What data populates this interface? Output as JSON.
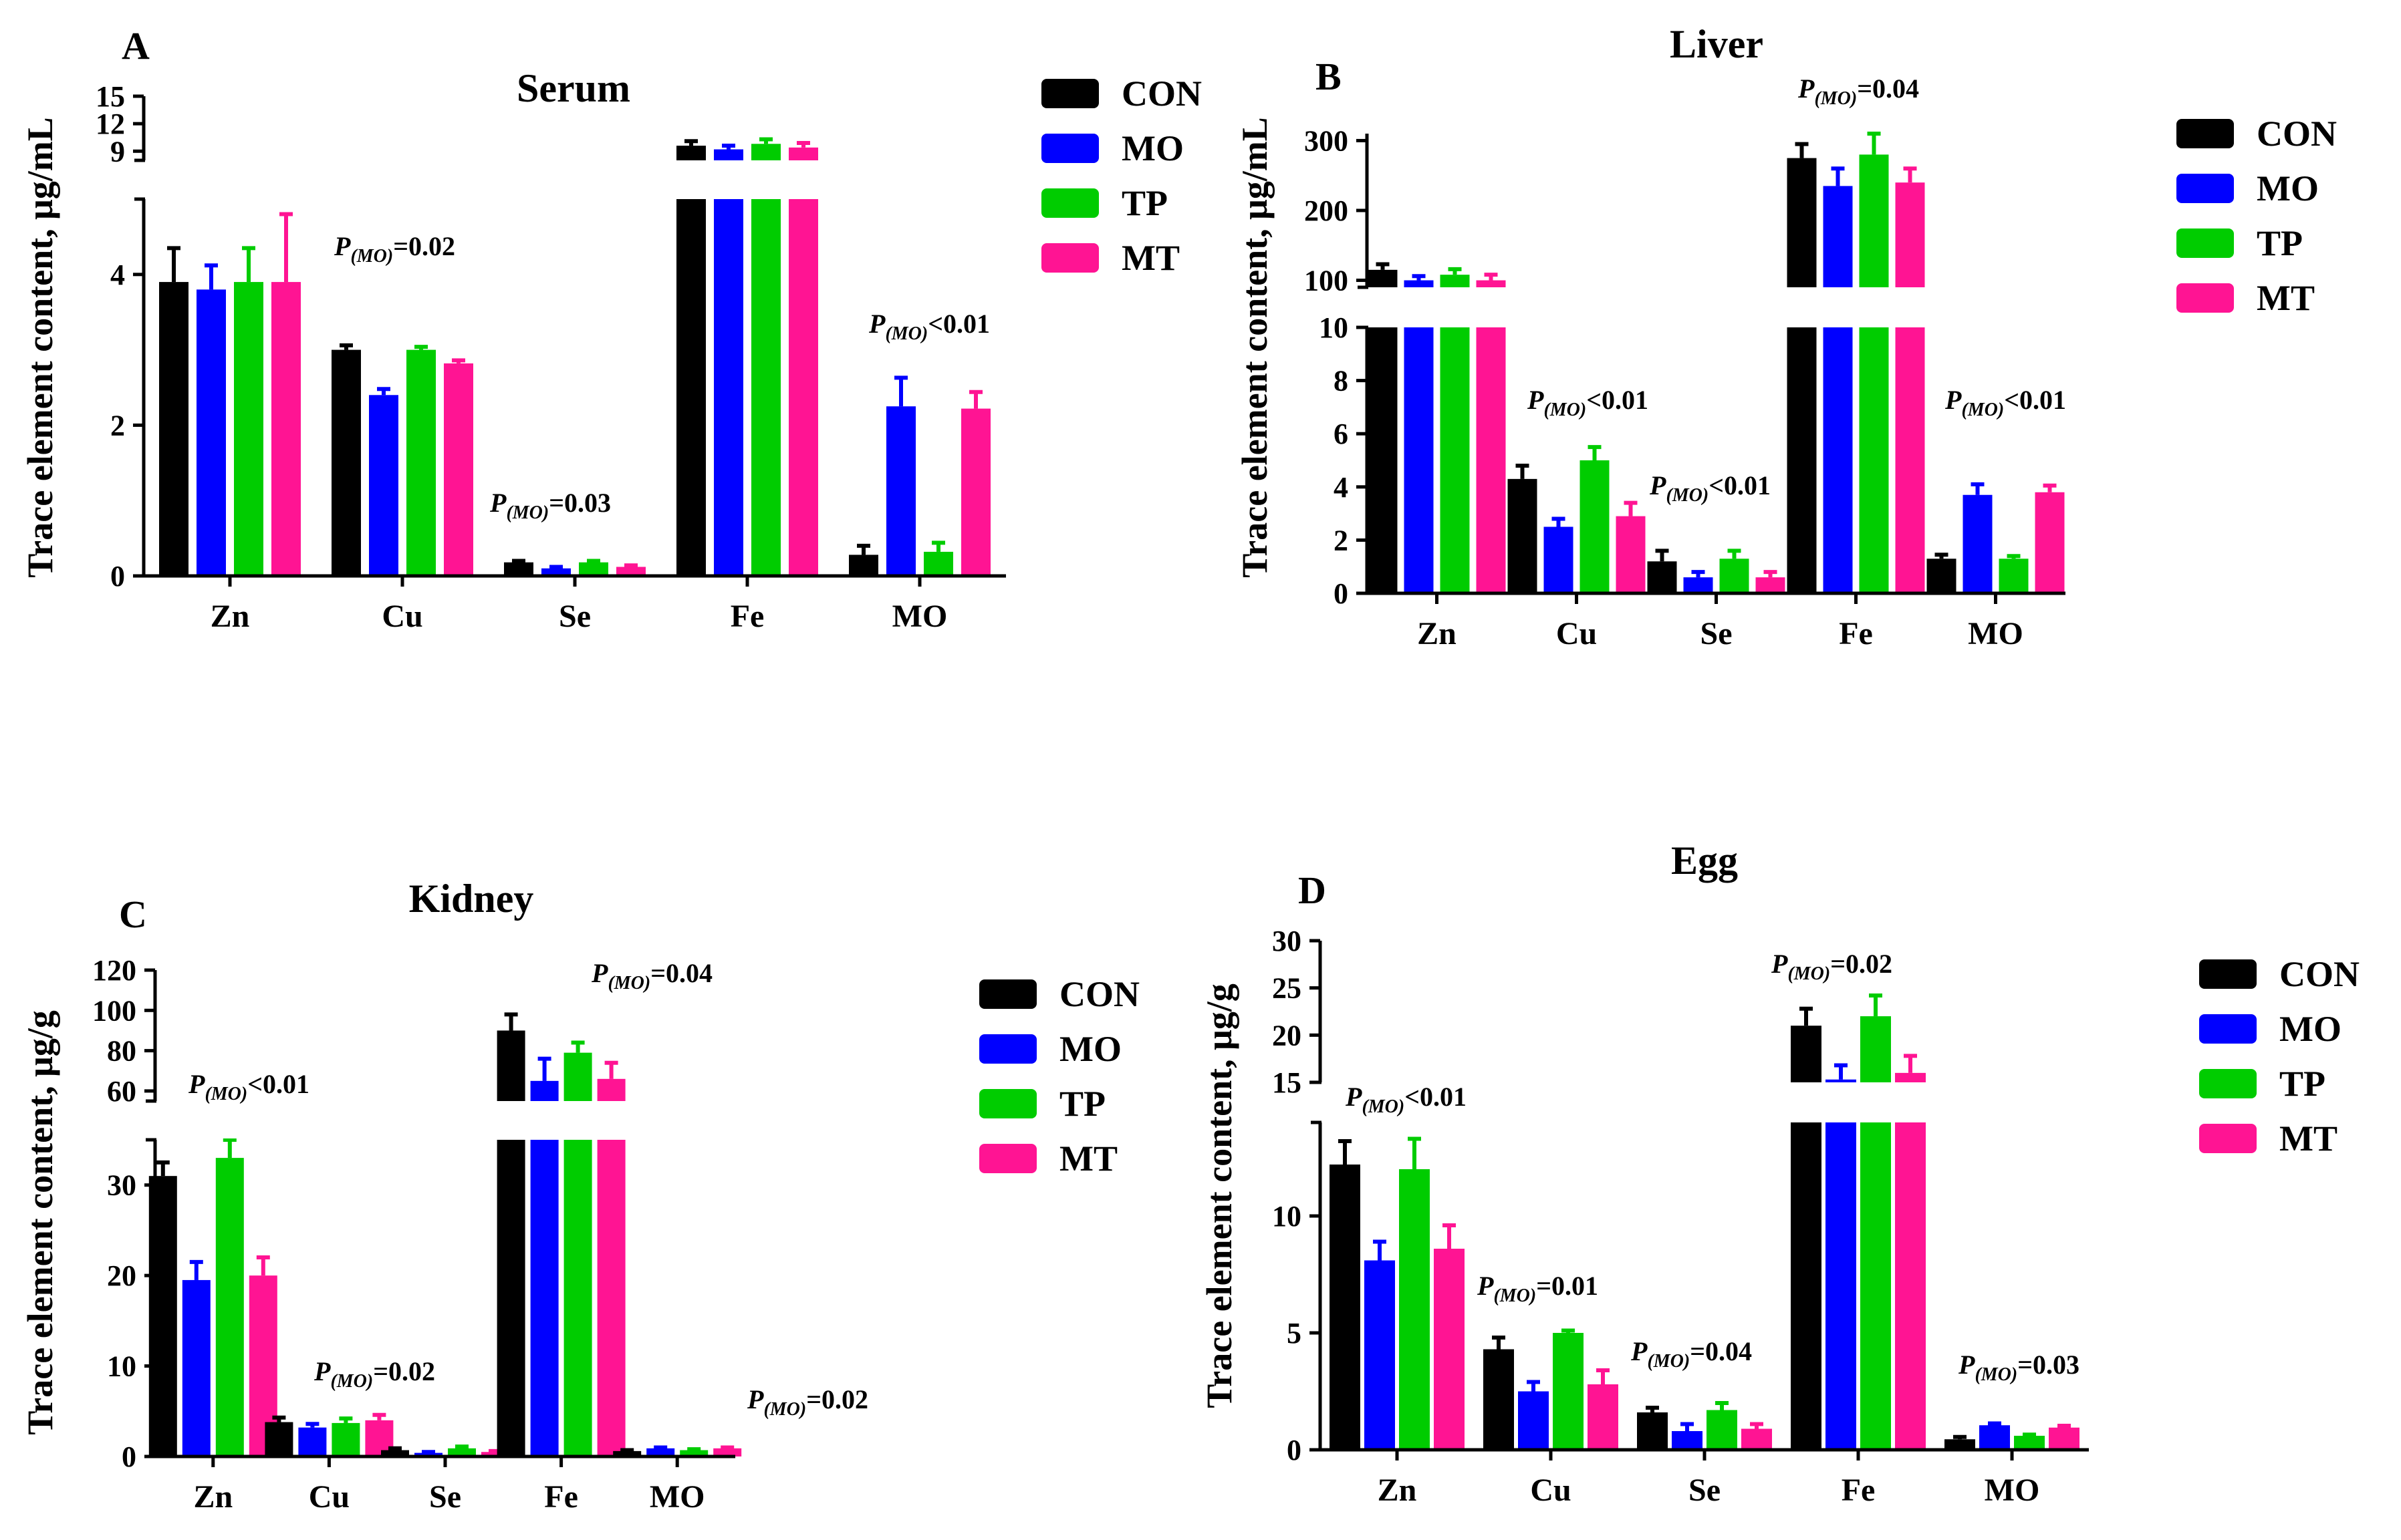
{
  "chart_data": [
    {
      "type": "bar",
      "panel": "A",
      "title": "Serum",
      "ylabel": "Trace element content,  μg/mL",
      "categories": [
        "Zn",
        "Cu",
        "Se",
        "Fe",
        "MO"
      ],
      "ylim_lower": [
        0,
        5
      ],
      "ylim_upper": [
        8,
        15
      ],
      "yticks_lower": [
        "0",
        "2",
        "4"
      ],
      "yticks_upper": [
        "9",
        "12",
        "15"
      ],
      "series": [
        {
          "name": "CON",
          "color": "#000000",
          "values": [
            3.9,
            3.0,
            0.18,
            9.6,
            0.28
          ],
          "errors": [
            0.45,
            0.06,
            0.02,
            0.5,
            0.12
          ]
        },
        {
          "name": "MO",
          "color": "#0000ff",
          "values": [
            3.8,
            2.4,
            0.1,
            9.2,
            2.25
          ],
          "errors": [
            0.32,
            0.08,
            0.02,
            0.4,
            0.38
          ]
        },
        {
          "name": "TP",
          "color": "#00cc00",
          "values": [
            3.9,
            3.0,
            0.18,
            9.8,
            0.32
          ],
          "errors": [
            0.45,
            0.04,
            0.02,
            0.5,
            0.12
          ]
        },
        {
          "name": "MT",
          "color": "#ff1493",
          "values": [
            3.9,
            2.82,
            0.12,
            9.4,
            2.22
          ],
          "errors": [
            0.9,
            0.04,
            0.02,
            0.5,
            0.22
          ]
        }
      ],
      "annotations": [
        {
          "category": "Cu",
          "prefix": "P",
          "sub": "(MO)",
          "rest": "=0.02"
        },
        {
          "category": "Se",
          "prefix": "P",
          "sub": "(MO)",
          "rest": "=0.03"
        },
        {
          "category": "MO",
          "prefix": "P",
          "sub": "(MO)",
          "rest": "<0.01"
        }
      ]
    },
    {
      "type": "bar",
      "panel": "B",
      "title": "Liver",
      "ylabel": "Trace element content,  μg/mL",
      "categories": [
        "Zn",
        "Cu",
        "Se",
        "Fe",
        "MO"
      ],
      "ylim_lower": [
        0,
        10
      ],
      "ylim_upper": [
        90,
        310
      ],
      "yticks_lower": [
        "0",
        "2",
        "4",
        "6",
        "8",
        "10"
      ],
      "yticks_upper": [
        "100",
        "200",
        "300"
      ],
      "series": [
        {
          "name": "CON",
          "color": "#000000",
          "values": [
            115,
            4.3,
            1.2,
            275,
            1.3
          ],
          "errors": [
            8,
            0.5,
            0.4,
            20,
            0.15
          ]
        },
        {
          "name": "MO",
          "color": "#0000ff",
          "values": [
            100,
            2.5,
            0.6,
            235,
            3.7
          ],
          "errors": [
            6,
            0.3,
            0.2,
            25,
            0.4
          ]
        },
        {
          "name": "TP",
          "color": "#00cc00",
          "values": [
            108,
            5.0,
            1.3,
            280,
            1.3
          ],
          "errors": [
            8,
            0.5,
            0.3,
            30,
            0.1
          ]
        },
        {
          "name": "MT",
          "color": "#ff1493",
          "values": [
            100,
            2.9,
            0.6,
            240,
            3.8
          ],
          "errors": [
            8,
            0.5,
            0.2,
            20,
            0.25
          ]
        }
      ],
      "annotations": [
        {
          "category": "Fe",
          "prefix": "P",
          "sub": "(MO)",
          "rest": "=0.04"
        },
        {
          "category": "Cu",
          "prefix": "P",
          "sub": "(MO)",
          "rest": "<0.01"
        },
        {
          "category": "Se",
          "prefix": "P",
          "sub": "(MO)",
          "rest": "<0.01"
        },
        {
          "category": "MO",
          "prefix": "P",
          "sub": "(MO)",
          "rest": "<0.01"
        }
      ]
    },
    {
      "type": "bar",
      "panel": "C",
      "title": "Kidney",
      "ylabel": "Trace element content,  μg/g",
      "categories": [
        "Zn",
        "Cu",
        "Se",
        "Fe",
        "MO"
      ],
      "ylim_lower": [
        0,
        35
      ],
      "ylim_upper": [
        55,
        120
      ],
      "yticks_lower": [
        "0",
        "10",
        "20",
        "30"
      ],
      "yticks_upper": [
        "60",
        "80",
        "100",
        "120"
      ],
      "series": [
        {
          "name": "CON",
          "color": "#000000",
          "values": [
            31,
            3.8,
            0.7,
            90,
            0.6
          ],
          "errors": [
            1.5,
            0.5,
            0.2,
            8,
            0.1
          ]
        },
        {
          "name": "MO",
          "color": "#0000ff",
          "values": [
            19.5,
            3.2,
            0.4,
            65,
            0.9
          ],
          "errors": [
            2,
            0.4,
            0.1,
            11,
            0.1
          ]
        },
        {
          "name": "TP",
          "color": "#00cc00",
          "values": [
            33,
            3.7,
            0.9,
            79,
            0.7
          ],
          "errors": [
            2,
            0.5,
            0.2,
            5,
            0.1
          ]
        },
        {
          "name": "MT",
          "color": "#ff1493",
          "values": [
            20,
            4.0,
            0.5,
            66,
            0.9
          ],
          "errors": [
            2,
            0.6,
            0.1,
            8,
            0.1
          ]
        }
      ],
      "annotations": [
        {
          "category": "Zn",
          "prefix": "P",
          "sub": "(MO)",
          "rest": "<0.01"
        },
        {
          "category": "Cu",
          "prefix": "P",
          "sub": "(MO)",
          "rest": "=0.02"
        },
        {
          "category": "Fe",
          "prefix": "P",
          "sub": "(MO)",
          "rest": "=0.04"
        },
        {
          "category": "MO",
          "prefix": "P",
          "sub": "(MO)",
          "rest": "=0.02"
        }
      ]
    },
    {
      "type": "bar",
      "panel": "D",
      "title": "Egg",
      "ylabel": "Trace element content,  μg/g",
      "categories": [
        "Zn",
        "Cu",
        "Se",
        "Fe",
        "MO"
      ],
      "ylim_lower": [
        0,
        14
      ],
      "ylim_upper": [
        15,
        30
      ],
      "yticks_lower": [
        "0",
        "5",
        "10"
      ],
      "yticks_upper": [
        "15",
        "20",
        "25",
        "30"
      ],
      "series": [
        {
          "name": "CON",
          "color": "#000000",
          "values": [
            12.2,
            4.3,
            1.6,
            21,
            0.45
          ],
          "errors": [
            1.0,
            0.5,
            0.2,
            1.8,
            0.1
          ]
        },
        {
          "name": "MO",
          "color": "#0000ff",
          "values": [
            8.1,
            2.5,
            0.8,
            15.3,
            1.05
          ],
          "errors": [
            0.8,
            0.4,
            0.3,
            1.5,
            0.08
          ]
        },
        {
          "name": "TP",
          "color": "#00cc00",
          "values": [
            12.0,
            5.0,
            1.7,
            22,
            0.6
          ],
          "errors": [
            1.3,
            0.1,
            0.3,
            2.2,
            0.05
          ]
        },
        {
          "name": "MT",
          "color": "#ff1493",
          "values": [
            8.6,
            2.8,
            0.9,
            16,
            0.95
          ],
          "errors": [
            1.0,
            0.6,
            0.2,
            1.8,
            0.08
          ]
        }
      ],
      "annotations": [
        {
          "category": "Zn",
          "prefix": "P",
          "sub": "(MO)",
          "rest": "<0.01"
        },
        {
          "category": "Fe",
          "prefix": "P",
          "sub": "(MO)",
          "rest": "=0.02"
        },
        {
          "category": "Cu",
          "prefix": "P",
          "sub": "(MO)",
          "rest": "=0.01"
        },
        {
          "category": "Se",
          "prefix": "P",
          "sub": "(MO)",
          "rest": "=0.04"
        },
        {
          "category": "MO",
          "prefix": "P",
          "sub": "(MO)",
          "rest": "=0.03"
        }
      ]
    }
  ]
}
